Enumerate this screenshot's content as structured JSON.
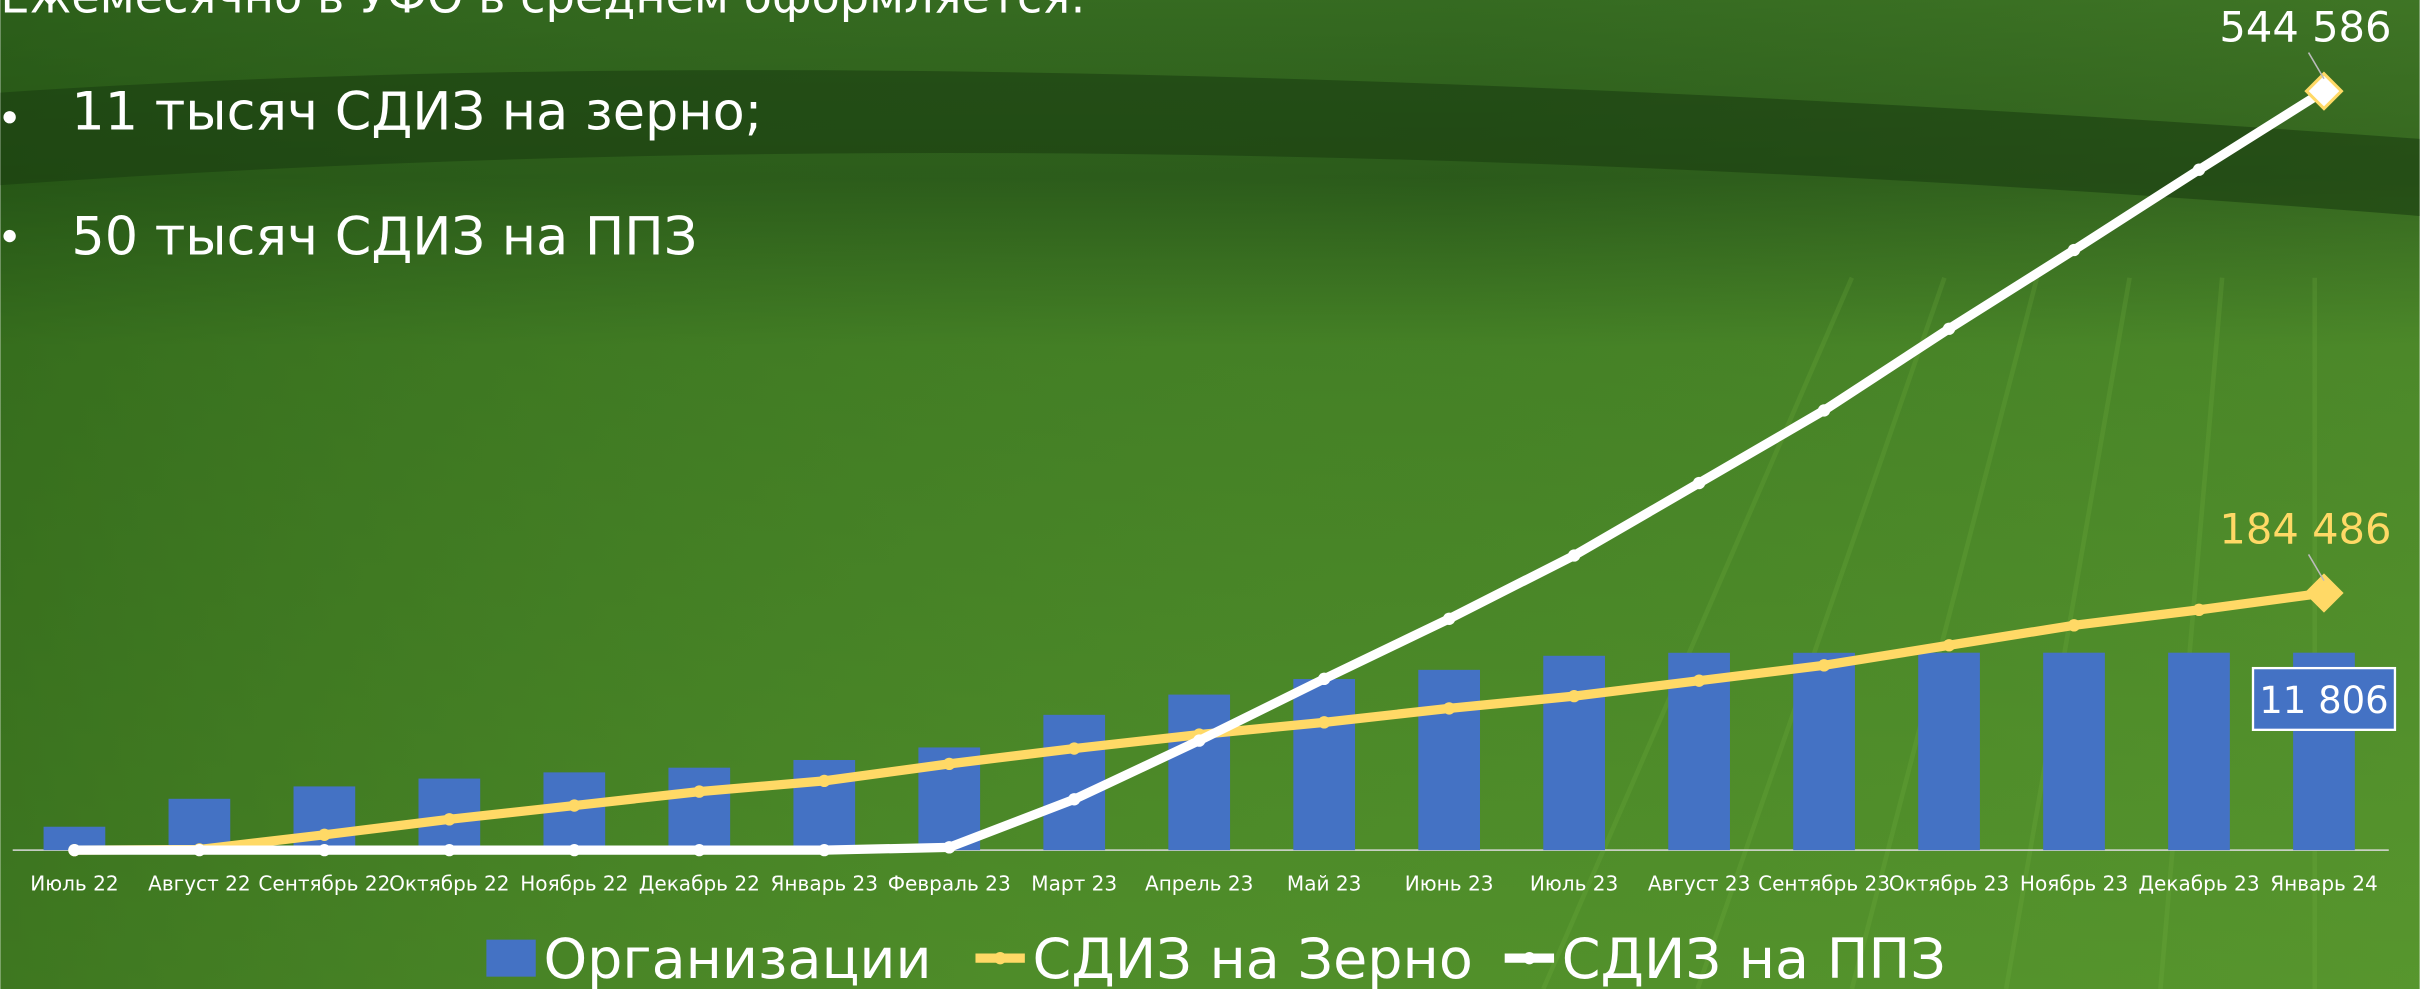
{
  "header": {
    "title": "Ежемесячно в УФО в среднем оформляется:",
    "bullets": [
      "11 тысяч СДИЗ на зерно;",
      "50 тысяч СДИЗ на ППЗ"
    ]
  },
  "chart_data": {
    "type": "bar-line",
    "categories": [
      "Июль 22",
      "Август 22",
      "Сентябрь 22",
      "Октябрь 22",
      "Ноябрь 22",
      "Декабрь 22",
      "Январь 23",
      "Февраль 23",
      "Март 23",
      "Апрель 23",
      "Май 23",
      "Июнь 23",
      "Июль 23",
      "Август 23",
      "Сентябрь 23",
      "Октябрь 23",
      "Ноябрь 23",
      "Декабрь 23",
      "Январь 24"
    ],
    "ylim": [
      0,
      600000
    ],
    "y2lim": [
      0,
      50000
    ],
    "series": [
      {
        "name": "Организации",
        "type": "bar",
        "axis": "y2",
        "color": "#4472c4",
        "values": [
          1400,
          3070,
          3810,
          4280,
          4650,
          4930,
          5390,
          6140,
          8090,
          9300,
          10230,
          10780,
          11620,
          11800,
          11800,
          11806,
          11806,
          11806,
          11806
        ],
        "value_labels": [
          null,
          null,
          null,
          null,
          null,
          null,
          null,
          null,
          null,
          null,
          null,
          null,
          null,
          null,
          null,
          null,
          null,
          null,
          "11 806"
        ]
      },
      {
        "name": "СДИЗ на Зерно",
        "type": "line",
        "color": "#ffd966",
        "values": [
          0,
          500,
          11000,
          22100,
          32000,
          42000,
          49700,
          61900,
          72900,
          82900,
          91700,
          101700,
          110500,
          121600,
          132600,
          147000,
          161300,
          172400,
          184486
        ],
        "value_labels": [
          null,
          null,
          null,
          null,
          null,
          null,
          null,
          null,
          null,
          null,
          null,
          null,
          null,
          null,
          null,
          null,
          null,
          null,
          "184 486"
        ]
      },
      {
        "name": "СДИЗ на ППЗ",
        "type": "line",
        "color": "#ffffff",
        "values": [
          0,
          0,
          0,
          0,
          0,
          0,
          0,
          2000,
          36500,
          78600,
          122900,
          166000,
          211400,
          263400,
          315500,
          374100,
          430600,
          488200,
          544586
        ],
        "value_labels": [
          null,
          null,
          null,
          null,
          null,
          null,
          null,
          null,
          null,
          null,
          null,
          null,
          null,
          null,
          null,
          null,
          null,
          null,
          "544 586"
        ]
      }
    ]
  }
}
